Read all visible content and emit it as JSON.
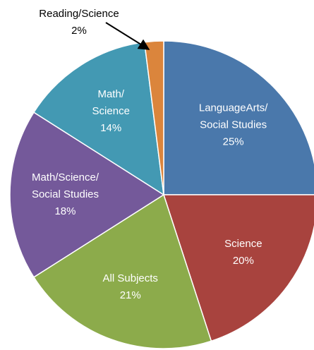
{
  "chart_data": {
    "type": "pie",
    "categories": [
      [
        "LanguageArts/",
        "Social Studies"
      ],
      [
        "Science"
      ],
      [
        "All Subjects"
      ],
      [
        "Math/Science/",
        "Social Studies"
      ],
      [
        "Math/",
        "Science"
      ],
      [
        "Reading/Science"
      ]
    ],
    "values": [
      25,
      20,
      21,
      18,
      14,
      2
    ],
    "value_labels": [
      "25%",
      "20%",
      "21%",
      "18%",
      "14%",
      "2%"
    ],
    "colors": [
      "#4a78ab",
      "#a8433e",
      "#8cab4b",
      "#74599a",
      "#4399b3",
      "#db853c"
    ]
  }
}
